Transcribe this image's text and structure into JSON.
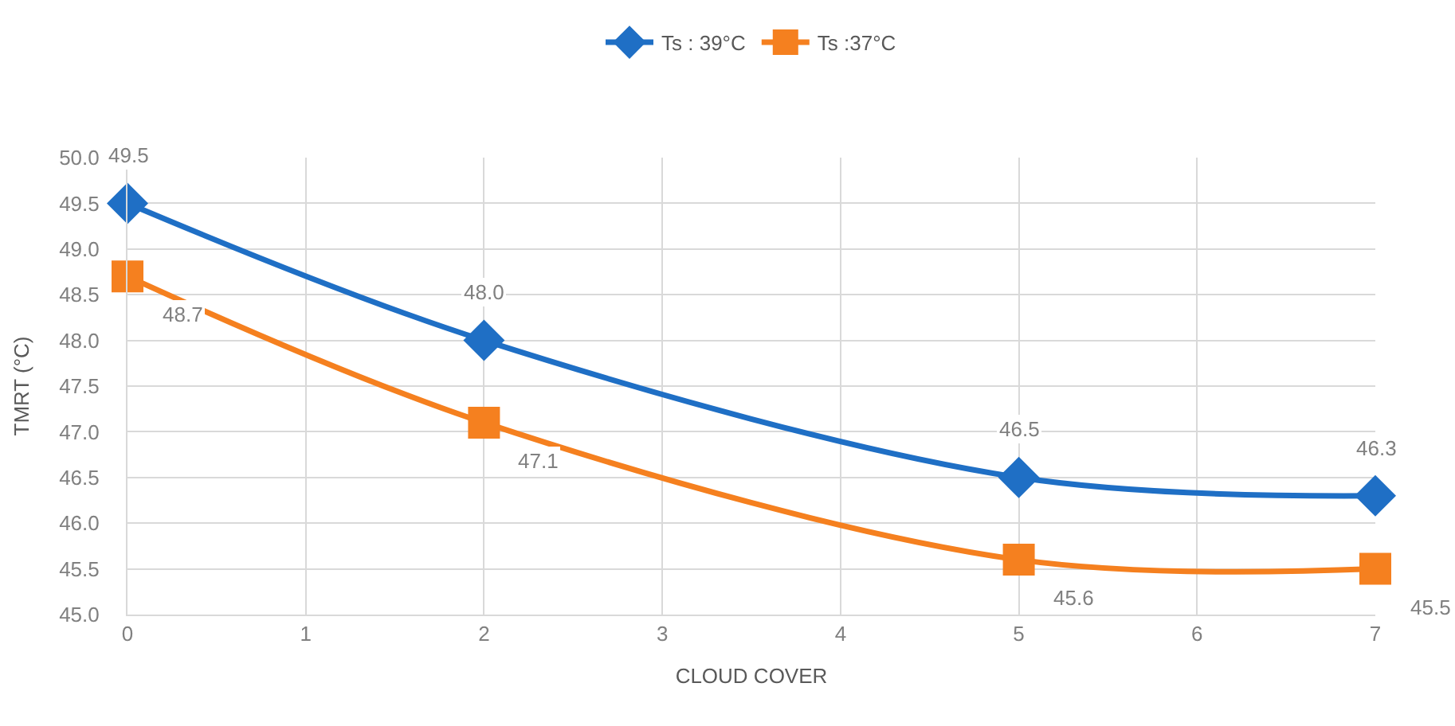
{
  "chart_data": {
    "type": "line",
    "xlabel": "CLOUD COVER",
    "ylabel": "TMRT (°C)",
    "x": [
      0,
      2,
      5,
      7
    ],
    "series": [
      {
        "name": "Ts : 39°C",
        "color": "#1f6fc5",
        "marker": "diamond",
        "values": [
          49.5,
          48.0,
          46.5,
          46.3
        ],
        "value_labels": [
          "49.5",
          "48.0",
          "46.5",
          "46.3"
        ]
      },
      {
        "name": "Ts :37°C",
        "color": "#f5801f",
        "marker": "square",
        "values": [
          48.7,
          47.1,
          45.6,
          45.5
        ],
        "value_labels": [
          "48.7",
          "47.1",
          "45.6",
          "45.5"
        ]
      }
    ],
    "xlim": [
      0,
      7
    ],
    "xticks": [
      0,
      1,
      2,
      3,
      4,
      5,
      6,
      7
    ],
    "ylim": [
      45,
      50
    ],
    "yticks": [
      {
        "value": 45,
        "label": "45.0"
      },
      {
        "value": 45.5,
        "label": "45.5"
      },
      {
        "value": 46,
        "label": "46.0"
      },
      {
        "value": 46.5,
        "label": "46.5"
      },
      {
        "value": 47,
        "label": "47.0"
      },
      {
        "value": 47.5,
        "label": "47.5"
      },
      {
        "value": 48,
        "label": "48.0"
      },
      {
        "value": 48.5,
        "label": "48.5"
      },
      {
        "value": 49,
        "label": "49.0"
      },
      {
        "value": 49.5,
        "label": "49.5"
      },
      {
        "value": 50,
        "label": "50.0"
      }
    ],
    "grid": true,
    "legend": "top"
  }
}
